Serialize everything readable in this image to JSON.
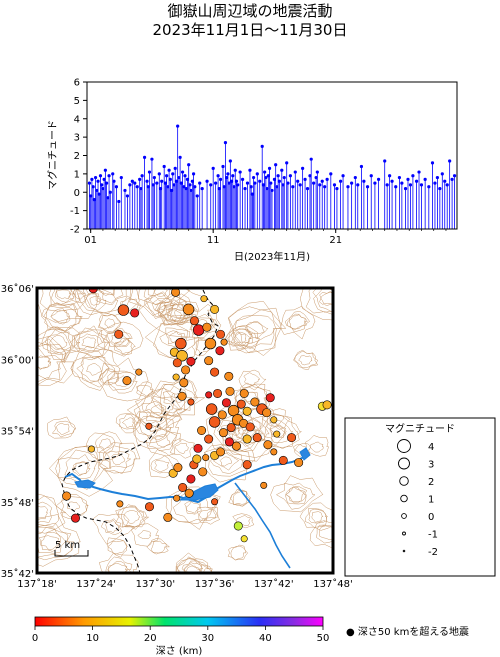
{
  "title": {
    "line1": "御嶽山周辺域の地震活動",
    "line2": "2023年11月1日〜11月30日"
  },
  "chart_data": [
    {
      "type": "stem",
      "ylabel": "マグニチュード",
      "xlabel": "日(2023年11月)",
      "ylim": [
        -2,
        6
      ],
      "yticks": [
        "6",
        "5",
        "4",
        "3",
        "2",
        "1",
        "0",
        "-1",
        "-2"
      ],
      "xlim": [
        0.7,
        30.9
      ],
      "xticks": [
        {
          "value": 1,
          "label": "01"
        },
        {
          "value": 11,
          "label": "11"
        },
        {
          "value": 21,
          "label": "21"
        }
      ],
      "series_color": "#0000ff",
      "points": [
        [
          0.9,
          0.5
        ],
        [
          1.0,
          -0.2
        ],
        [
          1.1,
          0.7
        ],
        [
          1.2,
          0.3
        ],
        [
          1.3,
          -0.4
        ],
        [
          1.4,
          0.8
        ],
        [
          1.5,
          0.1
        ],
        [
          1.6,
          0.6
        ],
        [
          1.7,
          -0.1
        ],
        [
          1.8,
          0.9
        ],
        [
          1.9,
          0.4
        ],
        [
          2.0,
          0.2
        ],
        [
          2.1,
          0.7
        ],
        [
          2.2,
          1.2
        ],
        [
          2.3,
          0.5
        ],
        [
          2.4,
          -0.3
        ],
        [
          2.5,
          0.9
        ],
        [
          2.6,
          0.0
        ],
        [
          2.8,
          1.0
        ],
        [
          2.9,
          0.6
        ],
        [
          3.1,
          0.3
        ],
        [
          3.3,
          -0.5
        ],
        [
          3.5,
          0.8
        ],
        [
          3.8,
          0.1
        ],
        [
          4.0,
          -0.2
        ],
        [
          4.2,
          0.4
        ],
        [
          4.4,
          0.6
        ],
        [
          4.6,
          0.5
        ],
        [
          4.8,
          0.3
        ],
        [
          5.0,
          0.7
        ],
        [
          5.1,
          0.2
        ],
        [
          5.2,
          0.9
        ],
        [
          5.4,
          1.9
        ],
        [
          5.6,
          0.6
        ],
        [
          5.7,
          0.3
        ],
        [
          5.8,
          1.1
        ],
        [
          6.0,
          1.8
        ],
        [
          6.1,
          0.4
        ],
        [
          6.2,
          0.8
        ],
        [
          6.4,
          0.5
        ],
        [
          6.6,
          1.0
        ],
        [
          6.7,
          0.2
        ],
        [
          6.8,
          0.6
        ],
        [
          7.0,
          1.4
        ],
        [
          7.1,
          0.5
        ],
        [
          7.2,
          0.9
        ],
        [
          7.3,
          0.3
        ],
        [
          7.4,
          1.2
        ],
        [
          7.5,
          0.7
        ],
        [
          7.6,
          0.1
        ],
        [
          7.7,
          1.0
        ],
        [
          7.8,
          0.4
        ],
        [
          7.9,
          1.3
        ],
        [
          8.0,
          0.6
        ],
        [
          8.1,
          3.6
        ],
        [
          8.2,
          0.8
        ],
        [
          8.3,
          1.9
        ],
        [
          8.4,
          0.5
        ],
        [
          8.5,
          1.1
        ],
        [
          8.6,
          0.3
        ],
        [
          8.7,
          0.9
        ],
        [
          8.8,
          0.2
        ],
        [
          8.9,
          0.7
        ],
        [
          9.0,
          1.5
        ],
        [
          9.1,
          0.4
        ],
        [
          9.2,
          0.1
        ],
        [
          9.3,
          0.6
        ],
        [
          9.4,
          1.0
        ],
        [
          9.5,
          0.3
        ],
        [
          9.7,
          -0.2
        ],
        [
          9.9,
          0.5
        ],
        [
          10.1,
          0.2
        ],
        [
          10.5,
          0.6
        ],
        [
          10.8,
          0.4
        ],
        [
          11.0,
          1.3
        ],
        [
          11.2,
          0.5
        ],
        [
          11.4,
          0.9
        ],
        [
          11.5,
          0.2
        ],
        [
          11.6,
          0.7
        ],
        [
          11.8,
          1.4
        ],
        [
          11.9,
          0.3
        ],
        [
          12.0,
          2.7
        ],
        [
          12.1,
          0.8
        ],
        [
          12.2,
          1.0
        ],
        [
          12.3,
          0.5
        ],
        [
          12.4,
          1.7
        ],
        [
          12.5,
          0.6
        ],
        [
          12.6,
          0.9
        ],
        [
          12.7,
          0.3
        ],
        [
          12.8,
          1.2
        ],
        [
          12.9,
          0.6
        ],
        [
          13.0,
          0.4
        ],
        [
          13.2,
          1.1
        ],
        [
          13.4,
          0.7
        ],
        [
          13.6,
          0.2
        ],
        [
          13.8,
          0.5
        ],
        [
          14.0,
          1.2
        ],
        [
          14.1,
          0.3
        ],
        [
          14.2,
          -0.1
        ],
        [
          14.3,
          0.8
        ],
        [
          14.4,
          0.5
        ],
        [
          14.6,
          1.0
        ],
        [
          14.8,
          0.6
        ],
        [
          15.0,
          2.5
        ],
        [
          15.1,
          0.4
        ],
        [
          15.2,
          1.1
        ],
        [
          15.3,
          0.8
        ],
        [
          15.4,
          0.2
        ],
        [
          15.5,
          0.9
        ],
        [
          15.6,
          1.3
        ],
        [
          15.7,
          0.5
        ],
        [
          15.8,
          0.1
        ],
        [
          16.0,
          0.7
        ],
        [
          16.1,
          1.5
        ],
        [
          16.2,
          0.3
        ],
        [
          16.3,
          0.9
        ],
        [
          16.4,
          0.6
        ],
        [
          16.6,
          1.2
        ],
        [
          16.7,
          0.4
        ],
        [
          16.8,
          0.8
        ],
        [
          17.0,
          1.6
        ],
        [
          17.1,
          0.5
        ],
        [
          17.3,
          0.9
        ],
        [
          17.5,
          0.3
        ],
        [
          17.7,
          1.1
        ],
        [
          17.9,
          0.6
        ],
        [
          18.1,
          0.4
        ],
        [
          18.3,
          1.3
        ],
        [
          18.5,
          0.7
        ],
        [
          18.7,
          0.2
        ],
        [
          18.9,
          0.9
        ],
        [
          19.0,
          1.8
        ],
        [
          19.2,
          0.5
        ],
        [
          19.4,
          0.8
        ],
        [
          19.5,
          1.1
        ],
        [
          19.7,
          0.4
        ],
        [
          19.9,
          0.6
        ],
        [
          20.1,
          0.3
        ],
        [
          20.3,
          0.7
        ],
        [
          20.6,
          1.0
        ],
        [
          20.9,
          0.4
        ],
        [
          21.1,
          0.2
        ],
        [
          21.4,
          0.6
        ],
        [
          21.6,
          0.9
        ],
        [
          22.0,
          0.3
        ],
        [
          22.3,
          0.5
        ],
        [
          22.6,
          0.8
        ],
        [
          22.8,
          0.4
        ],
        [
          23.1,
          1.4
        ],
        [
          23.3,
          0.6
        ],
        [
          23.6,
          0.3
        ],
        [
          23.9,
          0.9
        ],
        [
          24.2,
          0.5
        ],
        [
          24.5,
          0.7
        ],
        [
          25.0,
          1.7
        ],
        [
          25.2,
          0.4
        ],
        [
          25.4,
          0.9
        ],
        [
          25.6,
          0.6
        ],
        [
          25.9,
          0.3
        ],
        [
          26.2,
          0.8
        ],
        [
          26.4,
          0.5
        ],
        [
          26.7,
          0.2
        ],
        [
          26.9,
          0.7
        ],
        [
          27.1,
          0.4
        ],
        [
          27.3,
          0.9
        ],
        [
          27.6,
          0.6
        ],
        [
          27.8,
          1.1
        ],
        [
          28.0,
          0.4
        ],
        [
          28.3,
          0.7
        ],
        [
          28.6,
          0.3
        ],
        [
          28.9,
          1.6
        ],
        [
          29.1,
          0.5
        ],
        [
          29.3,
          0.8
        ],
        [
          29.5,
          0.2
        ],
        [
          29.7,
          1.0
        ],
        [
          29.9,
          0.6
        ],
        [
          30.1,
          0.4
        ],
        [
          30.3,
          1.7
        ],
        [
          30.5,
          0.7
        ],
        [
          30.7,
          0.9
        ]
      ]
    },
    {
      "type": "map-scatter",
      "lon_range": [
        137.3,
        137.8
      ],
      "lat_range": [
        35.7,
        36.1
      ],
      "x_ticks": [
        "137˚18'",
        "137˚24'",
        "137˚30'",
        "137˚36'",
        "137˚42'",
        "137˚48'"
      ],
      "y_ticks": [
        "36˚06'",
        "36˚00'",
        "35˚54'",
        "35˚48'",
        "35˚42'"
      ],
      "scale_bar_label": "5 km",
      "events": [
        [
          137.395,
          36.099,
          0,
          2
        ],
        [
          137.446,
          36.069,
          1,
          3
        ],
        [
          137.438,
          36.035,
          1,
          2
        ],
        [
          137.465,
          36.065,
          0,
          2
        ],
        [
          137.582,
          36.085,
          3,
          1
        ],
        [
          137.534,
          36.094,
          2,
          2
        ],
        [
          137.556,
          36.07,
          2,
          3
        ],
        [
          137.566,
          36.054,
          1,
          2
        ],
        [
          137.573,
          36.041,
          0,
          3
        ],
        [
          137.587,
          36.045,
          2,
          2
        ],
        [
          137.6,
          36.07,
          3,
          2
        ],
        [
          137.61,
          36.035,
          1,
          2
        ],
        [
          137.593,
          36.022,
          2,
          3
        ],
        [
          137.609,
          36.012,
          0,
          2
        ],
        [
          137.616,
          36.024,
          2,
          1
        ],
        [
          137.543,
          36.022,
          1,
          3
        ],
        [
          137.532,
          36.01,
          3,
          2
        ],
        [
          137.545,
          36.005,
          3,
          3
        ],
        [
          137.537,
          35.995,
          1,
          2
        ],
        [
          137.551,
          35.985,
          2,
          2
        ],
        [
          137.56,
          35.997,
          0,
          2
        ],
        [
          137.548,
          35.967,
          2,
          2
        ],
        [
          137.535,
          35.975,
          3,
          1
        ],
        [
          137.59,
          35.998,
          2,
          2
        ],
        [
          137.6,
          35.982,
          1,
          2
        ],
        [
          137.624,
          35.976,
          2,
          2
        ],
        [
          137.605,
          35.952,
          1,
          2
        ],
        [
          137.62,
          35.939,
          0,
          2
        ],
        [
          137.632,
          35.928,
          2,
          3
        ],
        [
          137.645,
          35.937,
          1,
          2
        ],
        [
          137.655,
          35.927,
          3,
          2
        ],
        [
          137.639,
          35.915,
          2,
          3
        ],
        [
          137.628,
          35.904,
          1,
          2
        ],
        [
          137.649,
          35.91,
          2,
          2
        ],
        [
          137.66,
          35.905,
          1,
          2
        ],
        [
          137.668,
          35.94,
          2,
          2
        ],
        [
          137.68,
          35.93,
          1,
          3
        ],
        [
          137.694,
          35.946,
          0,
          2
        ],
        [
          137.688,
          35.925,
          2,
          2
        ],
        [
          137.7,
          35.915,
          3,
          1
        ],
        [
          137.613,
          35.922,
          2,
          2
        ],
        [
          137.6,
          35.912,
          1,
          3
        ],
        [
          137.615,
          35.897,
          2,
          2
        ],
        [
          137.625,
          35.884,
          0,
          2
        ],
        [
          137.637,
          35.878,
          2,
          2
        ],
        [
          137.655,
          35.888,
          3,
          2
        ],
        [
          137.672,
          35.89,
          1,
          2
        ],
        [
          137.69,
          35.88,
          2,
          2
        ],
        [
          137.705,
          35.895,
          3,
          1
        ],
        [
          137.73,
          35.89,
          1,
          2
        ],
        [
          137.578,
          35.9,
          2,
          2
        ],
        [
          137.59,
          35.888,
          1,
          2
        ],
        [
          137.572,
          35.875,
          0,
          2
        ],
        [
          137.585,
          35.862,
          2,
          1
        ],
        [
          137.6,
          35.865,
          3,
          2
        ],
        [
          137.565,
          35.852,
          1,
          2
        ],
        [
          137.58,
          35.842,
          2,
          2
        ],
        [
          137.56,
          35.832,
          0,
          2
        ],
        [
          137.557,
          35.812,
          2,
          2
        ],
        [
          137.546,
          35.82,
          1,
          2
        ],
        [
          137.536,
          35.805,
          2,
          1
        ],
        [
          137.53,
          35.84,
          3,
          2
        ],
        [
          137.742,
          35.855,
          2,
          2
        ],
        [
          137.716,
          35.858,
          1,
          2
        ],
        [
          137.7,
          35.87,
          2,
          1
        ],
        [
          137.782,
          35.934,
          4,
          2
        ],
        [
          137.79,
          35.936,
          3,
          2
        ],
        [
          137.683,
          35.823,
          2,
          1
        ],
        [
          137.655,
          35.852,
          1,
          2
        ],
        [
          137.365,
          35.777,
          0,
          2
        ],
        [
          137.35,
          35.808,
          2,
          2
        ],
        [
          137.392,
          35.874,
          3,
          1
        ],
        [
          137.44,
          35.797,
          2,
          1
        ],
        [
          137.521,
          35.778,
          2,
          2
        ],
        [
          137.6,
          35.8,
          1,
          1
        ],
        [
          137.49,
          35.793,
          1,
          2
        ],
        [
          137.452,
          35.97,
          2,
          2
        ],
        [
          137.489,
          35.906,
          1,
          1
        ],
        [
          137.538,
          35.848,
          2,
          2
        ],
        [
          137.472,
          35.982,
          2,
          1
        ],
        [
          137.64,
          35.766,
          5,
          2
        ],
        [
          137.65,
          35.748,
          4,
          1
        ],
        [
          137.57,
          35.86,
          3,
          2
        ],
        [
          137.61,
          35.87,
          2,
          2
        ],
        [
          137.595,
          35.93,
          1,
          3
        ],
        [
          137.626,
          35.955,
          2,
          2
        ],
        [
          137.56,
          35.94,
          1,
          1
        ],
        [
          137.545,
          35.948,
          2,
          2
        ],
        [
          137.59,
          35.95,
          0,
          1
        ],
        [
          137.65,
          35.952,
          2,
          2
        ]
      ],
      "depth_colors": [
        "#e7211f",
        "#f05a1b",
        "#f58b1e",
        "#f8b728",
        "#f5e133",
        "#c2ef3a"
      ]
    }
  ],
  "legend": {
    "title": "マグニチュード",
    "items": [
      {
        "label": "4"
      },
      {
        "label": "3"
      },
      {
        "label": "2"
      },
      {
        "label": "1"
      },
      {
        "label": "0"
      },
      {
        "label": "-1"
      },
      {
        "label": "-2"
      }
    ]
  },
  "colorbar": {
    "ticks": [
      "0",
      "10",
      "20",
      "30",
      "40",
      "50"
    ],
    "label": "深さ (km)"
  },
  "deep_note": "● 深さ50 kmを超える地震"
}
